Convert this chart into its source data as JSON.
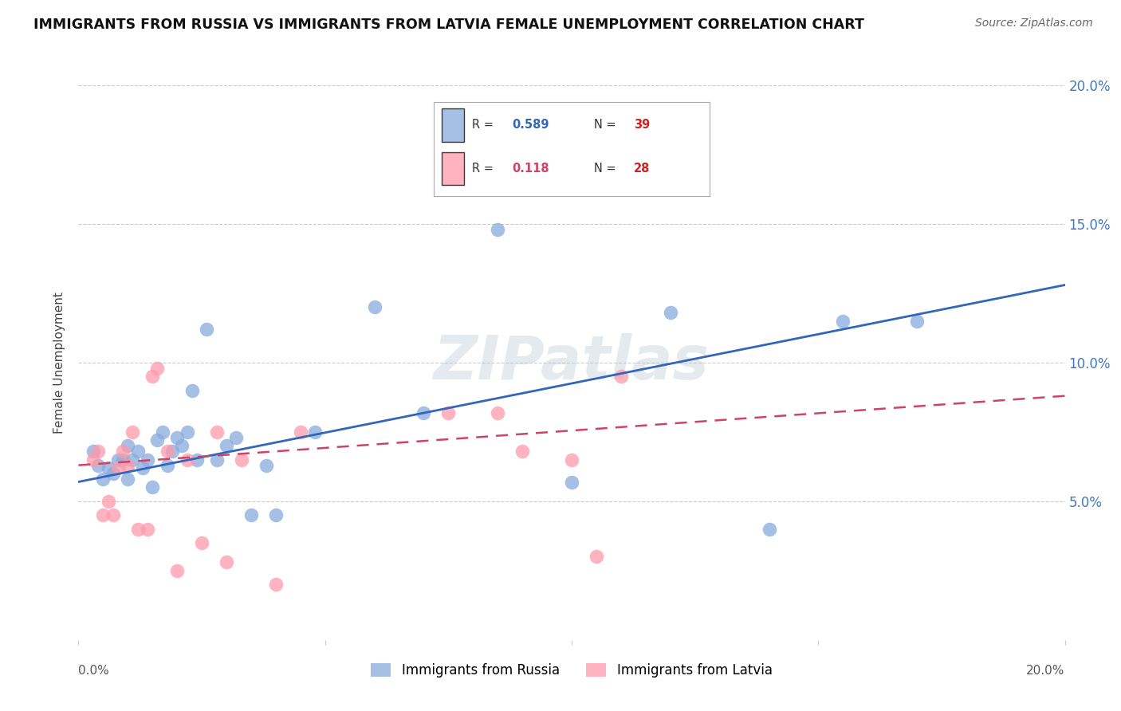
{
  "title": "IMMIGRANTS FROM RUSSIA VS IMMIGRANTS FROM LATVIA FEMALE UNEMPLOYMENT CORRELATION CHART",
  "source": "Source: ZipAtlas.com",
  "ylabel": "Female Unemployment",
  "watermark": "ZIPatlas",
  "xlim": [
    0.0,
    0.2
  ],
  "ylim": [
    0.0,
    0.2
  ],
  "russia_R": 0.589,
  "russia_N": 39,
  "latvia_R": 0.118,
  "latvia_N": 28,
  "russia_color": "#88AADD",
  "latvia_color": "#FF99AA",
  "russia_line_color": "#3366BB",
  "latvia_line_color": "#CC4466",
  "russia_x": [
    0.003,
    0.004,
    0.005,
    0.006,
    0.007,
    0.008,
    0.009,
    0.01,
    0.01,
    0.011,
    0.012,
    0.013,
    0.014,
    0.015,
    0.016,
    0.017,
    0.018,
    0.019,
    0.02,
    0.021,
    0.022,
    0.023,
    0.024,
    0.026,
    0.028,
    0.03,
    0.032,
    0.035,
    0.038,
    0.04,
    0.048,
    0.06,
    0.07,
    0.085,
    0.1,
    0.12,
    0.14,
    0.155,
    0.17
  ],
  "russia_y": [
    0.068,
    0.063,
    0.058,
    0.062,
    0.06,
    0.065,
    0.065,
    0.058,
    0.07,
    0.065,
    0.068,
    0.062,
    0.065,
    0.055,
    0.072,
    0.075,
    0.063,
    0.068,
    0.073,
    0.07,
    0.075,
    0.09,
    0.065,
    0.112,
    0.065,
    0.07,
    0.073,
    0.045,
    0.063,
    0.045,
    0.075,
    0.12,
    0.082,
    0.148,
    0.057,
    0.118,
    0.04,
    0.115,
    0.115
  ],
  "latvia_x": [
    0.003,
    0.004,
    0.005,
    0.006,
    0.007,
    0.008,
    0.009,
    0.01,
    0.011,
    0.012,
    0.014,
    0.015,
    0.016,
    0.018,
    0.02,
    0.022,
    0.025,
    0.028,
    0.03,
    0.033,
    0.04,
    0.045,
    0.075,
    0.085,
    0.09,
    0.1,
    0.105,
    0.11
  ],
  "latvia_y": [
    0.065,
    0.068,
    0.045,
    0.05,
    0.045,
    0.062,
    0.068,
    0.063,
    0.075,
    0.04,
    0.04,
    0.095,
    0.098,
    0.068,
    0.025,
    0.065,
    0.035,
    0.075,
    0.028,
    0.065,
    0.02,
    0.075,
    0.082,
    0.082,
    0.068,
    0.065,
    0.03,
    0.095
  ],
  "russia_trend_x": [
    0.0,
    0.2
  ],
  "russia_trend_y": [
    0.057,
    0.128
  ],
  "latvia_trend_x": [
    0.0,
    0.2
  ],
  "latvia_trend_y": [
    0.063,
    0.088
  ],
  "right_yticklabels": [
    "",
    "5.0%",
    "10.0%",
    "15.0%",
    "20.0%"
  ],
  "right_yticks": [
    0.0,
    0.05,
    0.1,
    0.15,
    0.2
  ],
  "background_color": "#FFFFFF",
  "grid_color": "#CCCCCC",
  "legend_russia_label": "Immigrants from Russia",
  "legend_latvia_label": "Immigrants from Latvia"
}
